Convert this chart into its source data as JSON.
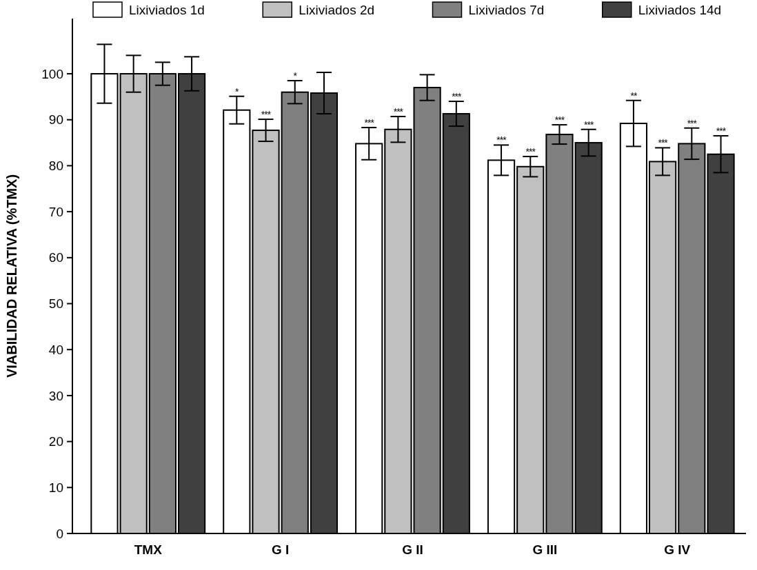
{
  "chart_data": {
    "type": "bar",
    "ylabel": "VIABILIDAD RELATIVA (%TMX)",
    "categories": [
      "TMX",
      "G I",
      "G II",
      "G III",
      "G IV"
    ],
    "ylim": [
      0,
      112
    ],
    "yticks": [
      0,
      10,
      20,
      30,
      40,
      50,
      60,
      70,
      80,
      90,
      100
    ],
    "grid": false,
    "legend": "top",
    "series": [
      {
        "name": "Lixiviados 1d",
        "color": "#ffffff",
        "values": [
          100,
          92.1,
          84.8,
          81.2,
          89.2
        ],
        "errors": [
          6.4,
          3,
          3.5,
          3.3,
          5
        ],
        "value_labels": [
          null,
          "*",
          "***",
          "***",
          "**"
        ]
      },
      {
        "name": "Lixiviados 2d",
        "color": "#c0c0c0",
        "values": [
          100,
          87.7,
          87.9,
          79.8,
          80.9
        ],
        "errors": [
          4,
          2.4,
          2.8,
          2.2,
          3
        ],
        "value_labels": [
          null,
          "***",
          "***",
          "***",
          "***"
        ]
      },
      {
        "name": "Lixiviados 7d",
        "color": "#808080",
        "values": [
          100,
          96,
          97,
          86.8,
          84.8
        ],
        "errors": [
          2.5,
          2.5,
          2.8,
          2.1,
          3.4
        ],
        "value_labels": [
          null,
          "*",
          null,
          "***",
          "***"
        ]
      },
      {
        "name": "Lixiviados 14d",
        "color": "#404040",
        "values": [
          100,
          95.8,
          91.3,
          85,
          82.5
        ],
        "errors": [
          3.7,
          4.5,
          2.7,
          2.9,
          4
        ],
        "value_labels": [
          null,
          null,
          "***",
          "***",
          "***"
        ]
      }
    ]
  }
}
